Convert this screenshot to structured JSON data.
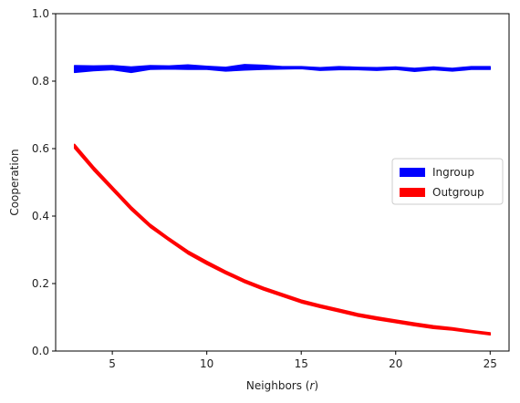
{
  "chart_data": {
    "type": "area",
    "xlabel_prefix": "Neighbors (",
    "xlabel_var": "r",
    "xlabel_suffix": ")",
    "ylabel": "Cooperation",
    "xlim": [
      2,
      26
    ],
    "ylim": [
      0,
      1.0
    ],
    "xticks": [
      5,
      10,
      15,
      20,
      25
    ],
    "yticks": [
      0.0,
      0.2,
      0.4,
      0.6,
      0.8,
      1.0
    ],
    "ytick_labels": [
      "0.0",
      "0.2",
      "0.4",
      "0.6",
      "0.8",
      "1.0"
    ],
    "grid": false,
    "legend_placement": "center-right",
    "x": [
      3,
      4,
      5,
      6,
      7,
      8,
      9,
      10,
      11,
      12,
      13,
      14,
      15,
      16,
      17,
      18,
      19,
      20,
      21,
      22,
      23,
      24,
      25
    ],
    "series": [
      {
        "name": "Ingroup",
        "color": "#0000ff",
        "lower": [
          0.826,
          0.831,
          0.834,
          0.826,
          0.835,
          0.836,
          0.835,
          0.835,
          0.83,
          0.833,
          0.835,
          0.836,
          0.837,
          0.832,
          0.834,
          0.834,
          0.832,
          0.835,
          0.829,
          0.834,
          0.83,
          0.835,
          0.835
        ],
        "upper": [
          0.846,
          0.845,
          0.846,
          0.842,
          0.846,
          0.845,
          0.848,
          0.844,
          0.841,
          0.849,
          0.847,
          0.843,
          0.843,
          0.84,
          0.843,
          0.841,
          0.84,
          0.842,
          0.838,
          0.842,
          0.838,
          0.843,
          0.843
        ]
      },
      {
        "name": "Outgroup",
        "color": "#ff0000",
        "lower": [
          0.601,
          0.536,
          0.477,
          0.418,
          0.367,
          0.327,
          0.288,
          0.257,
          0.229,
          0.203,
          0.181,
          0.162,
          0.143,
          0.129,
          0.116,
          0.103,
          0.093,
          0.084,
          0.075,
          0.067,
          0.062,
          0.055,
          0.048
        ],
        "upper": [
          0.613,
          0.547,
          0.487,
          0.428,
          0.376,
          0.335,
          0.297,
          0.266,
          0.237,
          0.211,
          0.189,
          0.17,
          0.151,
          0.137,
          0.124,
          0.111,
          0.101,
          0.092,
          0.083,
          0.075,
          0.069,
          0.061,
          0.054
        ]
      }
    ]
  }
}
